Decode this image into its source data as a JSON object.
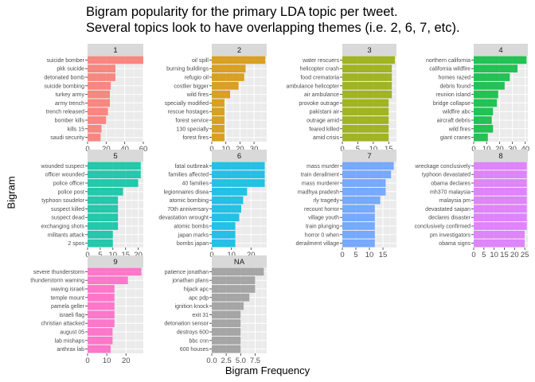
{
  "chart_data": {
    "type": "bar",
    "orientation": "horizontal",
    "title_lines": [
      "Bigram popularity for the primary LDA topic per tweet.",
      "Several topics look to have overlapping themes (i.e. 2, 6, 7, etc)."
    ],
    "xlabel": "Bigram Frequency",
    "ylabel": "Bigram",
    "grid": true,
    "facets": [
      {
        "strip": "1",
        "color": "#F8766D",
        "xlim": [
          0,
          60
        ],
        "ticks": [
          0,
          20,
          40,
          60
        ],
        "tick_labels": [
          "0",
          "20",
          "40",
          "60"
        ],
        "categories": [
          "suicide bomber",
          "pkk suicide",
          "detonated bomb",
          "suicide bombing",
          "turkey army",
          "army trench",
          "trench released",
          "bomber kills",
          "kills 15",
          "saudi security"
        ],
        "values": [
          60,
          30,
          30,
          25,
          24,
          24,
          22,
          20,
          15,
          14
        ]
      },
      {
        "strip": "2",
        "color": "#D39200",
        "xlim": [
          0,
          39
        ],
        "ticks": [
          0,
          10,
          20,
          30
        ],
        "tick_labels": [
          "0",
          "10",
          "20",
          "30"
        ],
        "categories": [
          "oil spill",
          "burning buildings",
          "refugio oil",
          "costlier bigger",
          "wild fires",
          "specially modified",
          "rescue hostages",
          "forest service",
          "130 specially",
          "forest fires"
        ],
        "values": [
          38,
          24,
          23,
          19,
          13,
          9,
          9,
          9,
          9,
          9
        ]
      },
      {
        "strip": "3",
        "color": "#93AA00",
        "xlim": [
          0,
          17.5
        ],
        "ticks": [
          0,
          5,
          10,
          15
        ],
        "tick_labels": [
          "0",
          "5",
          "10",
          "15"
        ],
        "categories": [
          "water rescuers",
          "helicopter crash",
          "food crematoria",
          "ambulance helicopter",
          "air ambulance",
          "provoke outrage",
          "pakistani air",
          "outrage amid",
          "feared killed",
          "amid crisis"
        ],
        "values": [
          17,
          16,
          16,
          16,
          16,
          15,
          15,
          15,
          15,
          15
        ]
      },
      {
        "strip": "4",
        "color": "#00BA38",
        "xlim": [
          0,
          42
        ],
        "ticks": [
          0,
          10,
          20,
          30,
          40
        ],
        "tick_labels": [
          "0",
          "10",
          "20",
          "30",
          "40"
        ],
        "categories": [
          "northern california",
          "california wildfire",
          "homes razed",
          "debris found",
          "reunion island",
          "bridge collapse",
          "wildfire abc",
          "aircraft debris",
          "wild fires",
          "giant cranes"
        ],
        "values": [
          41,
          34,
          28,
          24,
          19,
          18,
          15,
          14,
          15,
          11
        ]
      },
      {
        "strip": "5",
        "color": "#00C19F",
        "xlim": [
          0,
          22
        ],
        "ticks": [
          0,
          5,
          10,
          15,
          20
        ],
        "tick_labels": [
          "0",
          "5",
          "10",
          "15",
          "20"
        ],
        "categories": [
          "wounded suspect",
          "officer wounded",
          "police officer",
          "police post",
          "typhoon soudelor",
          "suspect killed",
          "suspect dead",
          "exchanging shots",
          "militants attack",
          "2 spos"
        ],
        "values": [
          21,
          21,
          20,
          14,
          12,
          12,
          12,
          12,
          10,
          10
        ]
      },
      {
        "strip": "6",
        "color": "#00B9E3",
        "xlim": [
          0,
          28
        ],
        "ticks": [
          0,
          10,
          20
        ],
        "tick_labels": [
          "0",
          "10",
          "20"
        ],
        "categories": [
          "fatal outbreak",
          "families affected",
          "40 families",
          "legionnaires disea",
          "atomic bombing",
          "70th anniversary",
          "devastation wrought",
          "atomic bombs",
          "japan marks",
          "bombs japan"
        ],
        "values": [
          27,
          27,
          27,
          18,
          16,
          15,
          14,
          12,
          12,
          12
        ]
      },
      {
        "strip": "7",
        "color": "#619CFF",
        "xlim": [
          0,
          20
        ],
        "ticks": [
          0,
          5,
          10,
          15
        ],
        "tick_labels": [
          "0",
          "5",
          "10",
          "15"
        ],
        "categories": [
          "mass murder",
          "train derailment",
          "mass murderer",
          "madhya pradesh",
          "rly tragedy",
          "recount horror",
          "village youth",
          "train plunging",
          "horror 0 when",
          "derailment village"
        ],
        "values": [
          19,
          18,
          16,
          16,
          14,
          12,
          12,
          12,
          12,
          12
        ]
      },
      {
        "strip": "8",
        "color": "#DB72FB",
        "xlim": [
          0,
          26.5
        ],
        "ticks": [
          0,
          5,
          10,
          15,
          20,
          25
        ],
        "tick_labels": [
          "0",
          "5",
          "10",
          "15",
          "20",
          "25"
        ],
        "categories": [
          "wreckage conclusively",
          "typhoon devastated",
          "obama declares",
          "mh370 malaysia",
          "malaysia pm",
          "devastated saipan",
          "declares disaster",
          "conclusively confirmed",
          "pm investigators",
          "obama signs"
        ],
        "values": [
          26,
          26,
          26,
          26,
          26,
          26,
          26,
          26,
          25,
          25
        ]
      },
      {
        "strip": "9",
        "color": "#FF61C3",
        "xlim": [
          0,
          29
        ],
        "ticks": [
          0,
          10,
          20
        ],
        "tick_labels": [
          "0",
          "10",
          "20"
        ],
        "categories": [
          "severe thunderstorm",
          "thunderstorm warning",
          "waving israeli",
          "temple mount",
          "pamela geller",
          "israeli flag",
          "christian attacked",
          "august 05",
          "lab mishaps",
          "anthrax lab"
        ],
        "values": [
          28,
          21,
          14,
          14,
          14,
          14,
          14,
          13,
          13,
          12
        ]
      },
      {
        "strip": "NA",
        "color": "#999999",
        "xlim": [
          0,
          9.5
        ],
        "ticks": [
          0,
          2.5,
          5,
          7.5
        ],
        "tick_labels": [
          "0.0",
          "2.5",
          "5.0",
          "7.5"
        ],
        "categories": [
          "patience jonathan",
          "jonathan plans",
          "hijack apc",
          "apc pdp",
          "ignition knock",
          "exit 31",
          "detonation sensor",
          "destroys 600",
          "bbc cnn",
          "600 houses"
        ],
        "values": [
          9,
          7.5,
          7.5,
          6.5,
          5.5,
          5,
          5,
          5,
          5,
          5
        ]
      }
    ]
  }
}
